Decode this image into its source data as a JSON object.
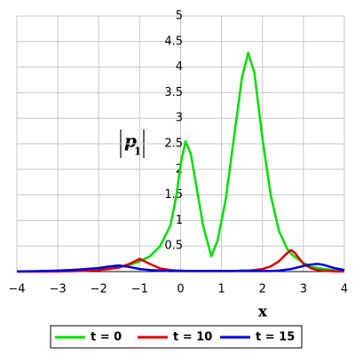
{
  "chart_data": {
    "type": "line",
    "xlabel": "x",
    "ylabel": "p",
    "ylabel_subscript": "1",
    "x": [
      -4,
      -3.5,
      -3,
      -2.5,
      -2,
      -1.75,
      -1.5,
      -1.25,
      -1,
      -0.75,
      -0.5,
      -0.25,
      -0.1,
      0,
      0.12,
      0.25,
      0.4,
      0.55,
      0.75,
      0.9,
      1.1,
      1.3,
      1.5,
      1.65,
      1.8,
      2,
      2.2,
      2.4,
      2.6,
      2.7,
      2.8,
      3,
      3.2,
      3.35,
      3.5,
      3.75,
      4
    ],
    "series": [
      {
        "name": "t = 0",
        "color": "#00e000",
        "values": [
          0.002,
          0.005,
          0.01,
          0.02,
          0.04,
          0.06,
          0.09,
          0.13,
          0.2,
          0.3,
          0.5,
          0.9,
          1.5,
          2.1,
          2.55,
          2.3,
          1.6,
          0.9,
          0.3,
          0.6,
          1.4,
          2.6,
          3.8,
          4.28,
          3.9,
          2.6,
          1.5,
          0.8,
          0.45,
          0.35,
          0.28,
          0.17,
          0.1,
          0.07,
          0.05,
          0.03,
          0.015
        ]
      },
      {
        "name": "t = 10",
        "color": "#e00000",
        "values": [
          0,
          0,
          0.002,
          0.01,
          0.03,
          0.05,
          0.08,
          0.15,
          0.25,
          0.15,
          0.06,
          0.03,
          0.02,
          0.02,
          0.01,
          0.01,
          0.01,
          0.01,
          0.01,
          0.01,
          0.01,
          0.01,
          0.02,
          0.02,
          0.03,
          0.05,
          0.1,
          0.2,
          0.36,
          0.42,
          0.36,
          0.15,
          0.06,
          0.03,
          0.02,
          0.005,
          0.002
        ]
      },
      {
        "name": "t = 15",
        "color": "#0000e0",
        "values": [
          0.003,
          0.008,
          0.02,
          0.04,
          0.07,
          0.1,
          0.12,
          0.09,
          0.05,
          0.03,
          0.02,
          0.01,
          0.01,
          0.01,
          0.01,
          0.01,
          0.01,
          0.01,
          0.01,
          0.01,
          0.01,
          0.01,
          0.01,
          0.01,
          0.01,
          0.01,
          0.01,
          0.02,
          0.04,
          0.05,
          0.07,
          0.11,
          0.14,
          0.15,
          0.13,
          0.07,
          0.03
        ]
      }
    ],
    "xlim": [
      -4,
      4
    ],
    "xticks": [
      {
        "value": -4,
        "label": "−4"
      },
      {
        "value": -3,
        "label": "−3"
      },
      {
        "value": -2,
        "label": "−2"
      },
      {
        "value": -1,
        "label": "−1"
      },
      0,
      1,
      2,
      3,
      4
    ],
    "ylim": [
      0,
      5
    ],
    "yticks": [
      0.5,
      1,
      1.5,
      2,
      2.5,
      3,
      3.5,
      4,
      4.5,
      5
    ],
    "grid": true
  }
}
